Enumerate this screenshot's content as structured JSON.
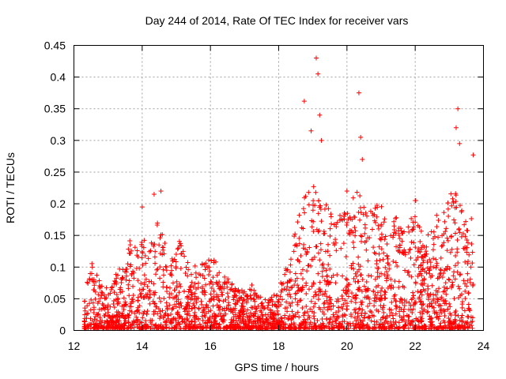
{
  "chart_data": {
    "type": "scatter",
    "title": "Day 244 of 2014, Rate Of TEC Index for receiver vars",
    "xlabel": "GPS time / hours",
    "ylabel": "ROTI / TECUs",
    "xlim": [
      12,
      24
    ],
    "ylim": [
      0,
      0.45
    ],
    "x_ticks": [
      12,
      14,
      16,
      18,
      20,
      22,
      24
    ],
    "y_ticks": [
      0,
      0.05,
      0.1,
      0.15,
      0.2,
      0.25,
      0.3,
      0.35,
      0.4,
      0.45
    ],
    "grid": true,
    "marker": "+",
    "color": "#ff0000",
    "data_range_x": [
      12.3,
      23.7
    ],
    "series": [
      {
        "name": "vars",
        "note": "dense point cloud; envelope of typical activity level vs time and notable spikes",
        "envelope": [
          [
            12.3,
            0.05
          ],
          [
            12.5,
            0.11
          ],
          [
            12.8,
            0.07
          ],
          [
            13.0,
            0.06
          ],
          [
            13.3,
            0.09
          ],
          [
            13.6,
            0.13
          ],
          [
            13.9,
            0.15
          ],
          [
            14.2,
            0.13
          ],
          [
            14.5,
            0.18
          ],
          [
            14.8,
            0.1
          ],
          [
            15.1,
            0.14
          ],
          [
            15.4,
            0.09
          ],
          [
            15.7,
            0.1
          ],
          [
            16.0,
            0.12
          ],
          [
            16.3,
            0.09
          ],
          [
            16.6,
            0.07
          ],
          [
            16.9,
            0.06
          ],
          [
            17.2,
            0.07
          ],
          [
            17.5,
            0.05
          ],
          [
            17.8,
            0.05
          ],
          [
            18.0,
            0.07
          ],
          [
            18.3,
            0.1
          ],
          [
            18.6,
            0.2
          ],
          [
            18.9,
            0.22
          ],
          [
            19.1,
            0.25
          ],
          [
            19.4,
            0.18
          ],
          [
            19.7,
            0.2
          ],
          [
            20.0,
            0.19
          ],
          [
            20.3,
            0.22
          ],
          [
            20.6,
            0.18
          ],
          [
            20.9,
            0.2
          ],
          [
            21.2,
            0.15
          ],
          [
            21.5,
            0.17
          ],
          [
            21.8,
            0.15
          ],
          [
            22.0,
            0.19
          ],
          [
            22.3,
            0.13
          ],
          [
            22.6,
            0.17
          ],
          [
            22.9,
            0.18
          ],
          [
            23.2,
            0.22
          ],
          [
            23.5,
            0.17
          ],
          [
            23.7,
            0.2
          ]
        ],
        "spikes": [
          [
            14.0,
            0.195
          ],
          [
            14.35,
            0.215
          ],
          [
            14.55,
            0.22
          ],
          [
            18.75,
            0.362
          ],
          [
            18.95,
            0.315
          ],
          [
            19.1,
            0.43
          ],
          [
            19.15,
            0.405
          ],
          [
            19.2,
            0.34
          ],
          [
            19.25,
            0.3
          ],
          [
            20.35,
            0.375
          ],
          [
            20.4,
            0.305
          ],
          [
            20.45,
            0.27
          ],
          [
            23.25,
            0.35
          ],
          [
            23.2,
            0.32
          ],
          [
            23.3,
            0.295
          ],
          [
            23.7,
            0.277
          ],
          [
            22.0,
            0.205
          ],
          [
            20.0,
            0.22
          ]
        ]
      }
    ]
  }
}
